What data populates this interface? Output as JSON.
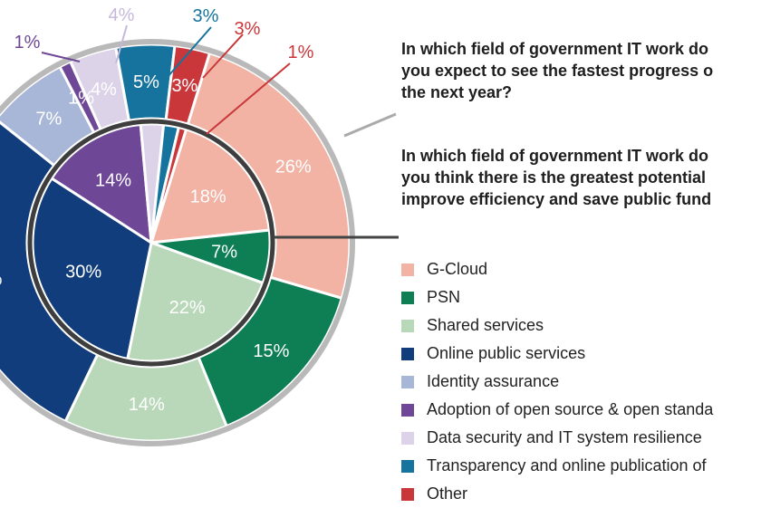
{
  "chart_data": {
    "type": "pie",
    "subtype": "nested-donut",
    "legend_position": "right",
    "categories": [
      "G-Cloud",
      "PSN",
      "Shared services",
      "Online public services",
      "Identity assurance",
      "Adoption of open source & open standa",
      "Data security and IT system resilience",
      "Transparency and online publication of",
      "Other"
    ],
    "colors": [
      "#f2b3a4",
      "#0e7f55",
      "#b8d8b9",
      "#123d7c",
      "#a8b6d8",
      "#6e4796",
      "#dcd3e8",
      "#16739d",
      "#c9373a"
    ],
    "series": [
      {
        "name": "In which field of government IT work do you expect to see the fastest progress over the next year?",
        "ring": "outer",
        "values": [
          26,
          15,
          14,
          30,
          7,
          1,
          4,
          5,
          3
        ],
        "labels": [
          "26%",
          "15%",
          "14%",
          "%",
          "7%",
          "1%",
          "4%",
          "5%",
          "3%"
        ]
      },
      {
        "name": "In which field of government IT work do you think there is the greatest potential to improve efficiency and save public funds?",
        "ring": "inner",
        "values": [
          18,
          7,
          22,
          30,
          0,
          14,
          3,
          2,
          1
        ],
        "labels": [
          "18%",
          "7%",
          "22%",
          "30%",
          "",
          "14%",
          "",
          "",
          ""
        ]
      }
    ],
    "callouts": [
      {
        "text": "1%",
        "color": "#6e4796"
      },
      {
        "text": "4%",
        "color": "#c6b8db"
      },
      {
        "text": "3%",
        "color": "#16739d"
      },
      {
        "text": "3%",
        "color": "#c9373a"
      },
      {
        "text": "1%",
        "color": "#c9373a"
      }
    ]
  },
  "questions": {
    "q1": "In which field of government IT work do\nyou expect to see the fastest progress o\nthe next year?",
    "q2": "In which field of government IT work do\nyou think there is the greatest potential\nimprove efficiency and save public fund"
  },
  "legend": [
    {
      "label": "G-Cloud",
      "color": "#f2b3a4"
    },
    {
      "label": "PSN",
      "color": "#0e7f55"
    },
    {
      "label": "Shared services",
      "color": "#b8d8b9"
    },
    {
      "label": "Online public services",
      "color": "#123d7c"
    },
    {
      "label": "Identity assurance",
      "color": "#a8b6d8"
    },
    {
      "label": "Adoption of open source & open standa",
      "color": "#6e4796"
    },
    {
      "label": "Data security and IT system resilience",
      "color": "#dcd3e8"
    },
    {
      "label": "Transparency and online publication of",
      "color": "#16739d"
    },
    {
      "label": "Other",
      "color": "#c9373a"
    }
  ]
}
